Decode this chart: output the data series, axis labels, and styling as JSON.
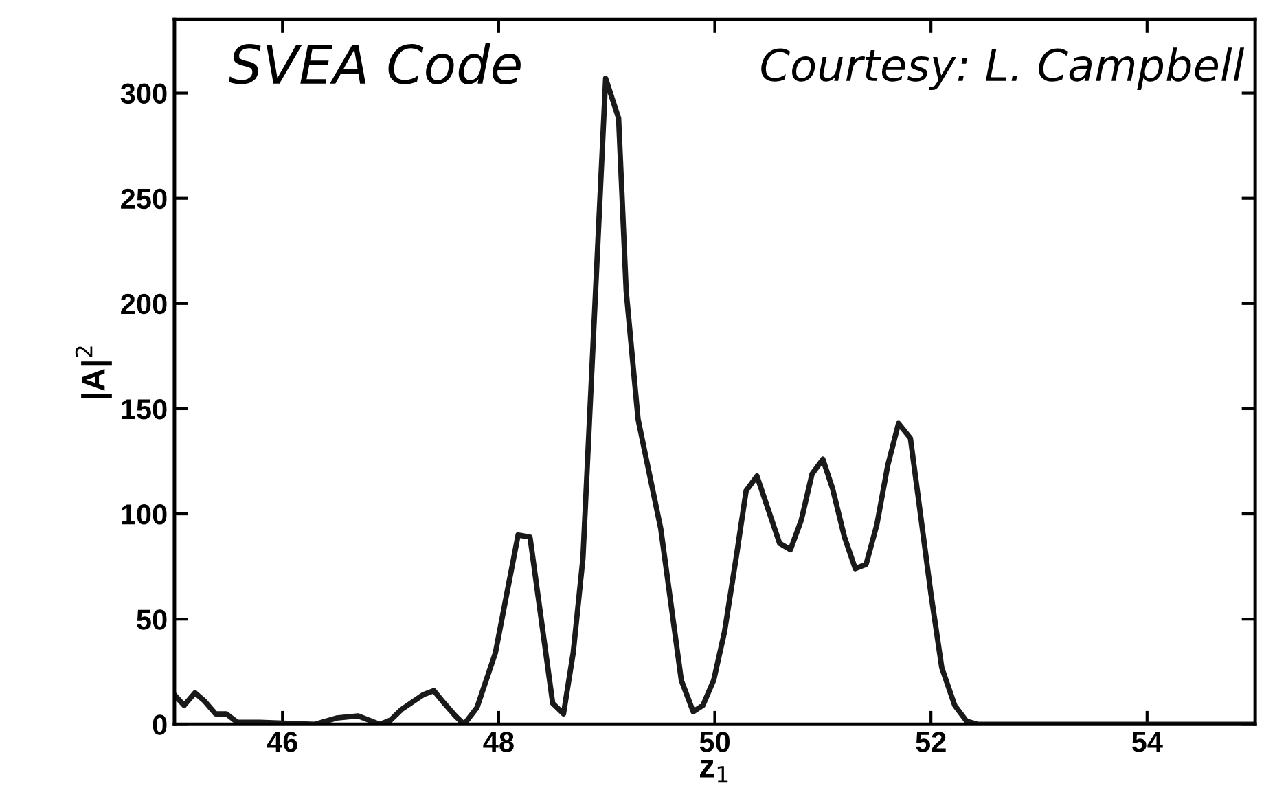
{
  "chart_data": {
    "type": "line",
    "xlabel": "z$_{1}$",
    "ylabel": "|A|$^{2}$",
    "annotations": [
      "SVEA Code",
      "Courtesy: L. Campbell"
    ],
    "x": [
      45,
      45.09,
      45.19,
      45.28,
      45.38,
      45.48,
      45.58,
      45.79,
      46.3,
      46.5,
      46.7,
      46.9,
      47.0,
      47.1,
      47.3,
      47.4,
      47.48,
      47.6,
      47.68,
      47.8,
      47.97,
      48.18,
      48.29,
      48.5,
      48.6,
      48.69,
      48.78,
      48.99,
      49.11,
      49.18,
      49.29,
      49.5,
      49.69,
      49.8,
      49.89,
      49.99,
      50.09,
      50.2,
      50.29,
      50.39,
      50.6,
      50.7,
      50.8,
      50.9,
      51.0,
      51.09,
      51.2,
      51.3,
      51.4,
      51.5,
      51.6,
      51.7,
      51.81,
      51.9,
      52.0,
      52.1,
      52.22,
      52.33,
      52.43,
      55
    ],
    "series": [
      {
        "color": "#1a1a1a",
        "values": [
          14,
          9,
          15,
          11,
          5,
          5,
          1,
          1,
          0,
          3,
          4,
          0,
          2,
          7,
          14,
          16,
          11,
          4,
          0,
          8,
          34,
          90,
          89,
          10,
          5,
          34,
          79,
          307,
          288,
          206,
          145,
          93,
          21,
          6,
          9,
          21,
          44,
          80,
          111,
          118,
          86,
          83,
          97,
          119,
          126,
          112,
          89,
          74,
          76,
          95,
          123,
          143,
          136,
          101,
          62,
          27,
          9,
          1.5,
          0,
          0
        ]
      }
    ],
    "xlim": [
      45,
      55
    ],
    "xticks": [
      46,
      48,
      50,
      52,
      54
    ],
    "ylim": [
      0,
      335
    ],
    "yticks": [
      0,
      50,
      100,
      150,
      200,
      250,
      300
    ],
    "grid": false,
    "legend": false,
    "marker": "none",
    "line_style": "solid"
  }
}
